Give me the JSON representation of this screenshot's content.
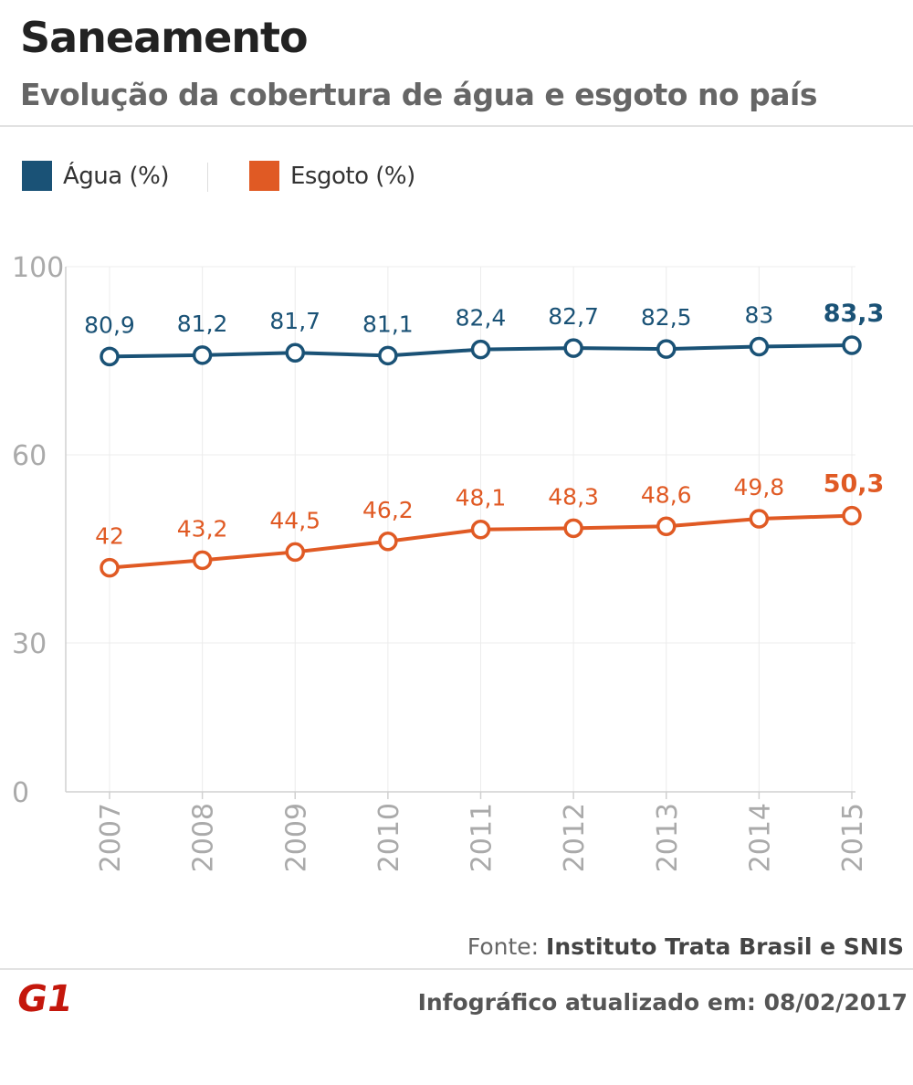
{
  "header": {
    "title": "Saneamento",
    "subtitle": "Evolução da cobertura de água e esgoto no país"
  },
  "legend": [
    {
      "label": "Água (%)",
      "color": "#1a5276"
    },
    {
      "label": "Esgoto (%)",
      "color": "#e05a24"
    }
  ],
  "chart_data": {
    "type": "line",
    "x": [
      "2007",
      "2008",
      "2009",
      "2010",
      "2011",
      "2012",
      "2013",
      "2014",
      "2015"
    ],
    "series": [
      {
        "name": "Água (%)",
        "color": "#1a5276",
        "values": [
          80.9,
          81.2,
          81.7,
          81.1,
          82.4,
          82.7,
          82.5,
          83,
          83.3
        ],
        "labels": [
          "80,9",
          "81,2",
          "81,7",
          "81,1",
          "82,4",
          "82,7",
          "82,5",
          "83",
          "83,3"
        ]
      },
      {
        "name": "Esgoto (%)",
        "color": "#e05a24",
        "values": [
          42,
          43.2,
          44.5,
          46.2,
          48.1,
          48.3,
          48.6,
          49.8,
          50.3
        ],
        "labels": [
          "42",
          "43,2",
          "44,5",
          "46,2",
          "48,1",
          "48,3",
          "48,6",
          "49,8",
          "50,3"
        ]
      }
    ],
    "yticks": [
      {
        "value": 0,
        "label": "0"
      },
      {
        "value": 30,
        "label": "30"
      },
      {
        "value": 60,
        "label": "60"
      },
      {
        "value": 100,
        "label": "100"
      }
    ],
    "ylim": [
      0,
      100
    ],
    "grid": true,
    "highlight_last": true
  },
  "footer": {
    "source_prefix": "Fonte: ",
    "source_name": "Instituto Trata Brasil e SNIS",
    "logo_text": "G1",
    "updated": "Infográfico atualizado em: 08/02/2017"
  }
}
